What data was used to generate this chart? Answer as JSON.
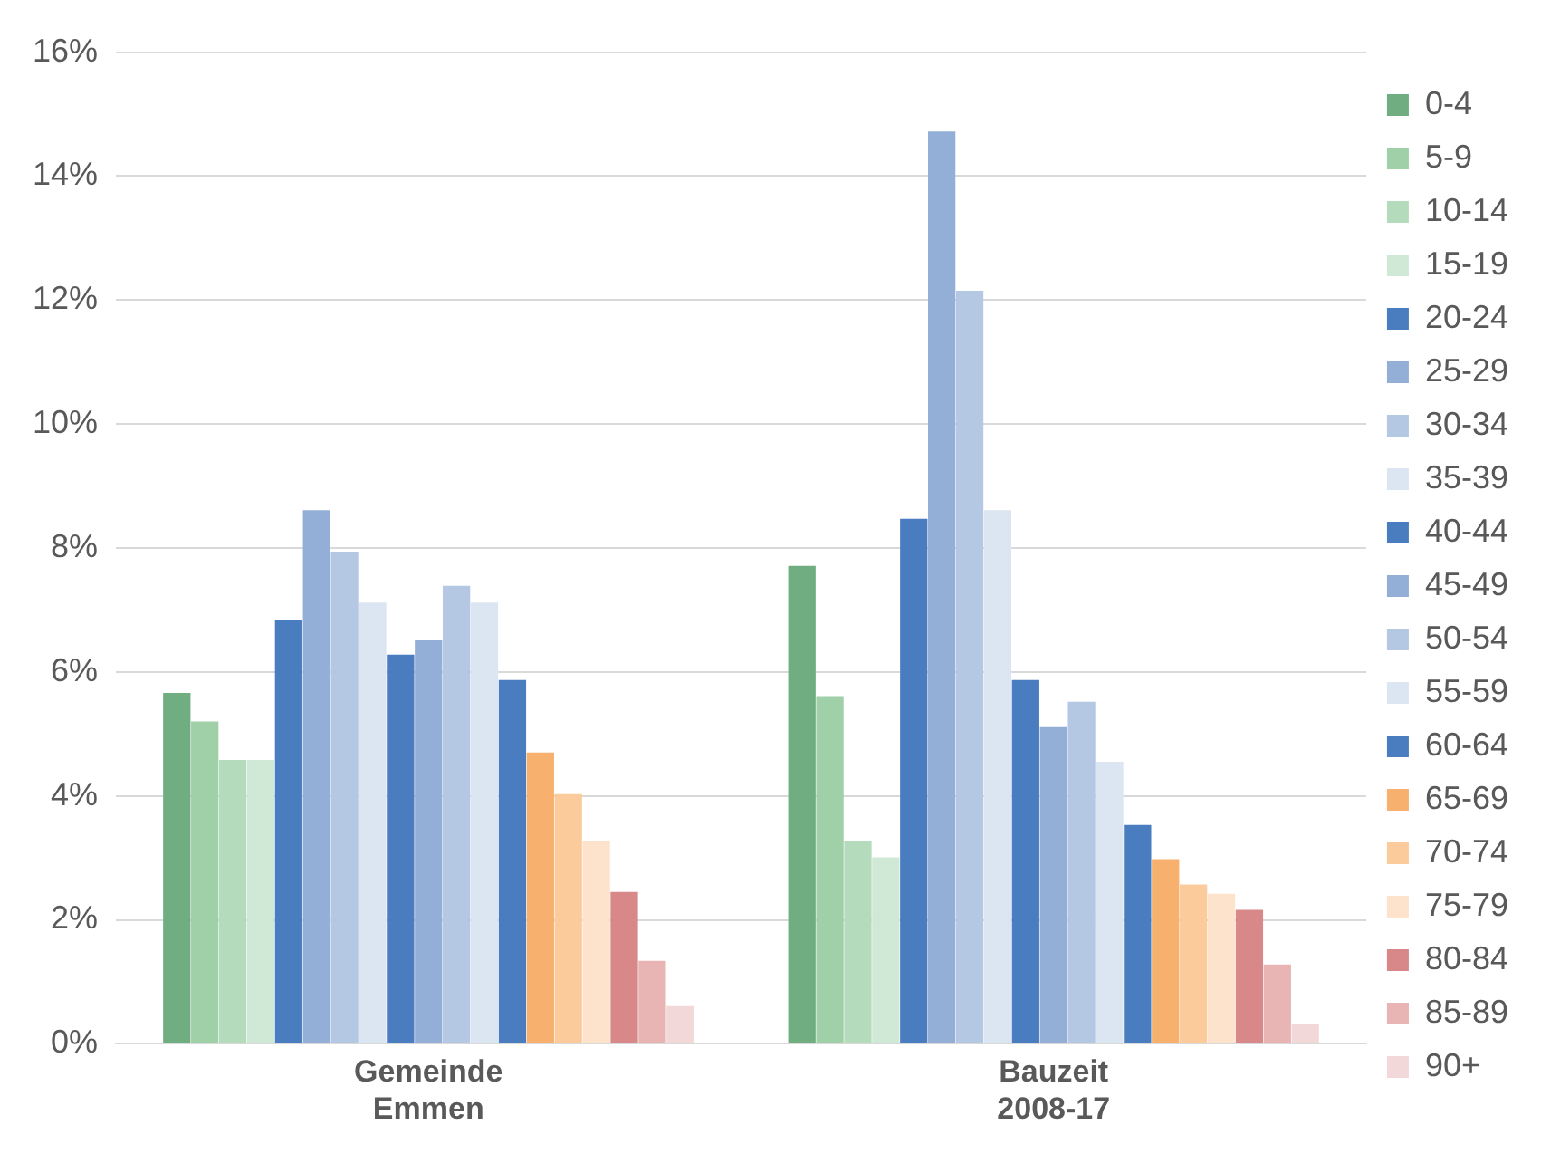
{
  "chart_data": {
    "type": "bar",
    "categories": [
      "Gemeinde Emmen",
      "Bauzeit 2008-17"
    ],
    "series": [
      {
        "name": "0-4",
        "color": "#70ad80",
        "values": [
          5.66,
          7.71
        ]
      },
      {
        "name": "5-9",
        "color": "#a0d0a8",
        "values": [
          5.2,
          5.61
        ]
      },
      {
        "name": "10-14",
        "color": "#b4dcbc",
        "values": [
          4.58,
          3.27
        ]
      },
      {
        "name": "15-19",
        "color": "#cfe9d6",
        "values": [
          4.58,
          3.01
        ]
      },
      {
        "name": "20-24",
        "color": "#4a7cc0",
        "values": [
          6.83,
          8.47
        ]
      },
      {
        "name": "25-29",
        "color": "#93afd8",
        "values": [
          8.61,
          14.72
        ]
      },
      {
        "name": "30-34",
        "color": "#b4c8e4",
        "values": [
          7.94,
          12.15
        ]
      },
      {
        "name": "35-39",
        "color": "#dce6f2",
        "values": [
          7.12,
          8.61
        ]
      },
      {
        "name": "40-44",
        "color": "#4a7cc0",
        "values": [
          6.28,
          5.87
        ]
      },
      {
        "name": "45-49",
        "color": "#93afd8",
        "values": [
          6.51,
          5.11
        ]
      },
      {
        "name": "50-54",
        "color": "#b4c8e4",
        "values": [
          7.39,
          5.52
        ]
      },
      {
        "name": "55-59",
        "color": "#dce6f2",
        "values": [
          7.12,
          4.55
        ]
      },
      {
        "name": "60-64",
        "color": "#4a7cc0",
        "values": [
          5.87,
          3.53
        ]
      },
      {
        "name": "65-69",
        "color": "#f8b06e",
        "values": [
          4.7,
          2.98
        ]
      },
      {
        "name": "70-74",
        "color": "#fbcb9c",
        "values": [
          4.03,
          2.57
        ]
      },
      {
        "name": "75-79",
        "color": "#fde3cc",
        "values": [
          3.27,
          2.42
        ]
      },
      {
        "name": "80-84",
        "color": "#d88888",
        "values": [
          2.45,
          2.16
        ]
      },
      {
        "name": "85-89",
        "color": "#e8b4b4",
        "values": [
          1.34,
          1.28
        ]
      },
      {
        "name": "90+",
        "color": "#f2d8d8",
        "values": [
          0.61,
          0.32
        ]
      }
    ],
    "ylim": [
      0,
      16
    ],
    "yticks": [
      {
        "value": 0,
        "label": "0%"
      },
      {
        "value": 2,
        "label": "2%"
      },
      {
        "value": 4,
        "label": "4%"
      },
      {
        "value": 6,
        "label": "6%"
      },
      {
        "value": 8,
        "label": "8%"
      },
      {
        "value": 10,
        "label": "10%"
      },
      {
        "value": 12,
        "label": "12%"
      },
      {
        "value": 14,
        "label": "14%"
      },
      {
        "value": 16,
        "label": "16%"
      }
    ],
    "grid": "y",
    "legend": "right"
  }
}
